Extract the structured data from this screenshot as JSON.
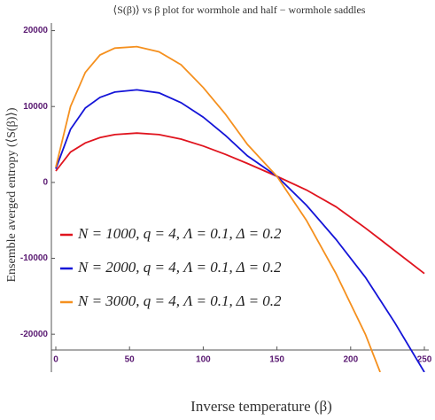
{
  "chart_data": {
    "type": "line",
    "title": "⟨S(β)⟩ vs β plot for wormhole and half − wormhole saddles",
    "x_label": "Inverse temperature (β)",
    "y_label": "Ensemble averged entropy   (⟨S(β)⟩)",
    "x": [
      0,
      10,
      20,
      30,
      40,
      55,
      70,
      85,
      100,
      115,
      130,
      150,
      170,
      190,
      210,
      220,
      230,
      250
    ],
    "series": [
      {
        "name": "N = 1000, q = 4, Λ = 0.1, Δ = 0.2",
        "color": "#e0141e",
        "values": [
          1500,
          4000,
          5200,
          5900,
          6300,
          6500,
          6300,
          5700,
          4800,
          3700,
          2500,
          800,
          -1000,
          -3200,
          -6000,
          -7500,
          -9000,
          -12000
        ]
      },
      {
        "name": "N = 2000, q = 4, Λ = 0.1, Δ = 0.2",
        "color": "#1414d8",
        "values": [
          1800,
          7000,
          9800,
          11200,
          11900,
          12200,
          11800,
          10500,
          8600,
          6200,
          3500,
          800,
          -3000,
          -7500,
          -12500,
          -15500,
          -18500,
          -25000
        ]
      },
      {
        "name": "N = 3000, q = 4, Λ = 0.1, Δ = 0.2",
        "color": "#f5901e",
        "values": [
          2000,
          10000,
          14500,
          16800,
          17700,
          17900,
          17200,
          15500,
          12500,
          9000,
          5000,
          800,
          -5000,
          -12000,
          -20000,
          -25000,
          null,
          null
        ]
      }
    ],
    "xlim": [
      -3,
      253
    ],
    "ylim": [
      -25000,
      21000
    ],
    "xticks": [
      0,
      50,
      100,
      150,
      200,
      250
    ],
    "yticks": [
      -20000,
      -10000,
      0,
      10000,
      20000
    ],
    "legend": "left"
  }
}
